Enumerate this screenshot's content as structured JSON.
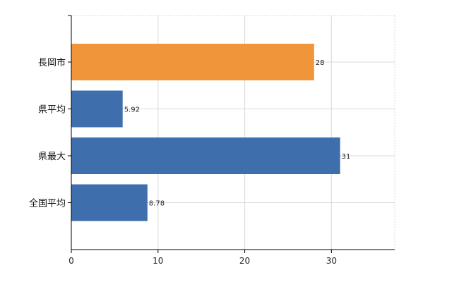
{
  "chart_data": {
    "type": "bar",
    "orientation": "horizontal",
    "categories": [
      "長岡市",
      "県平均",
      "県最大",
      "全国平均"
    ],
    "values": [
      28,
      5.92,
      31,
      8.78
    ],
    "data_labels": [
      "28",
      "5.92",
      "31",
      "8.78"
    ],
    "bar_colors": [
      "#f0953a",
      "#3e6eab",
      "#3e6eab",
      "#3e6eab"
    ],
    "xlim": [
      0,
      37.3
    ],
    "xticks": [
      0,
      10,
      20,
      30
    ],
    "xtick_labels": [
      "0",
      "10",
      "20",
      "30"
    ],
    "grid": true,
    "legend": "none",
    "title": "",
    "xlabel": "",
    "ylabel": ""
  },
  "colors": {
    "highlight": "#f0953a",
    "default": "#3e6eab",
    "grid": "#d9d9d9",
    "axis": "#000000"
  }
}
